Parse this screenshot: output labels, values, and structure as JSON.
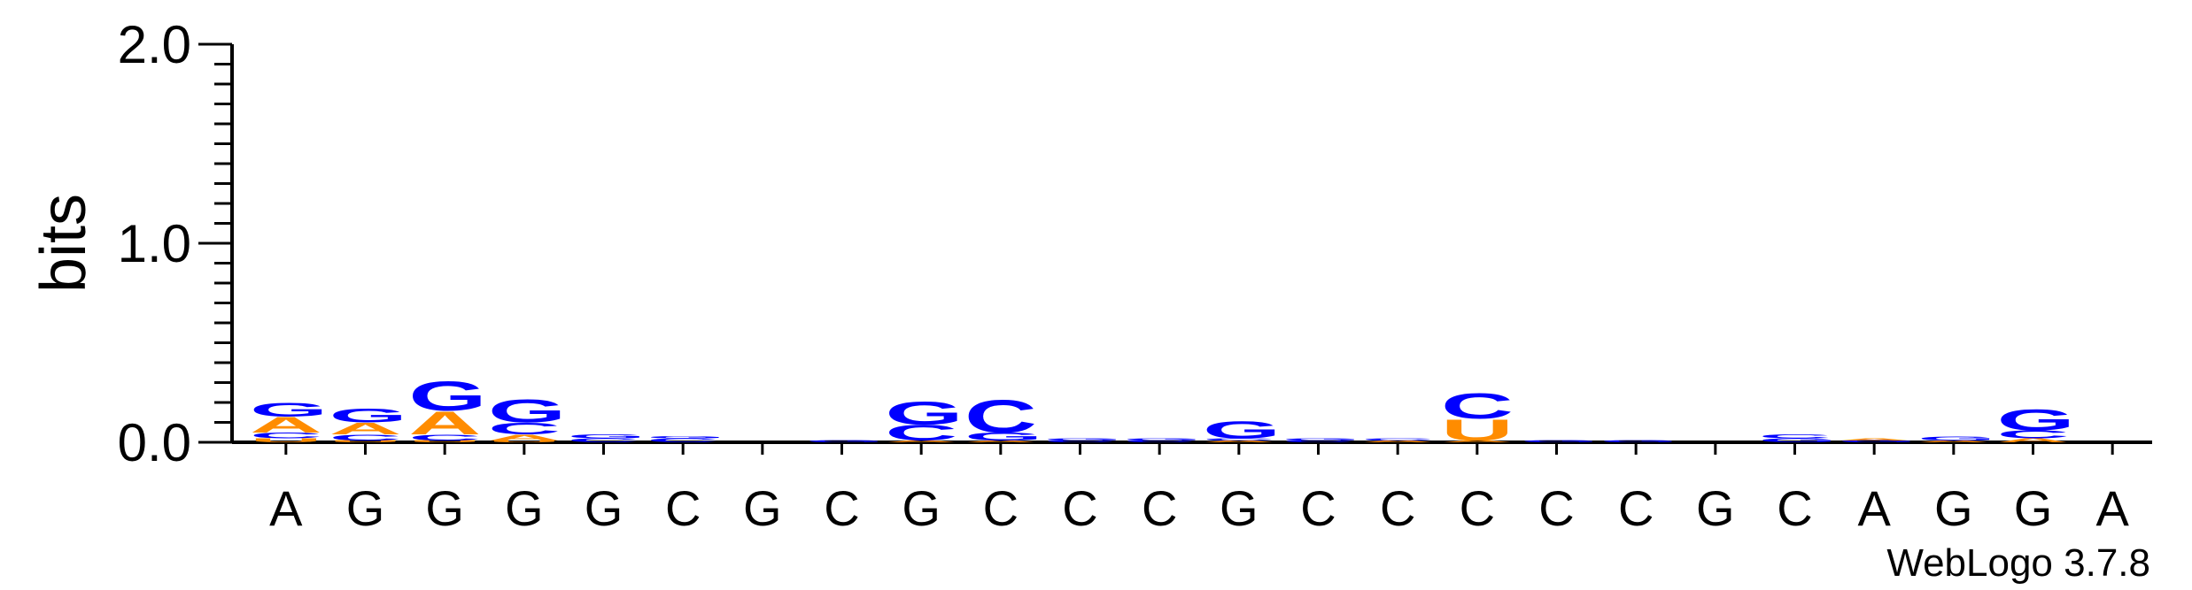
{
  "chart_data": {
    "type": "sequence-logo",
    "ylabel": "bits",
    "ylim": [
      0,
      2.0
    ],
    "yticks": [
      "0.0",
      "1.0",
      "2.0"
    ],
    "y_minor_step": 0.1,
    "positions": [
      "A",
      "G",
      "G",
      "G",
      "G",
      "C",
      "G",
      "C",
      "G",
      "C",
      "C",
      "C",
      "G",
      "C",
      "C",
      "C",
      "C",
      "C",
      "G",
      "C",
      "A",
      "G",
      "G",
      "A"
    ],
    "stacks": [
      [
        {
          "l": "U",
          "h": 0.02
        },
        {
          "l": "C",
          "h": 0.03
        },
        {
          "l": "A",
          "h": 0.08
        },
        {
          "l": "G",
          "h": 0.07
        }
      ],
      [
        {
          "l": "U",
          "h": 0.01
        },
        {
          "l": "C",
          "h": 0.03
        },
        {
          "l": "A",
          "h": 0.06
        },
        {
          "l": "G",
          "h": 0.07
        }
      ],
      [
        {
          "l": "U",
          "h": 0.01
        },
        {
          "l": "C",
          "h": 0.03
        },
        {
          "l": "A",
          "h": 0.12
        },
        {
          "l": "G",
          "h": 0.15
        }
      ],
      [
        {
          "l": "U",
          "h": 0.01
        },
        {
          "l": "A",
          "h": 0.03
        },
        {
          "l": "C",
          "h": 0.06
        },
        {
          "l": "G",
          "h": 0.12
        }
      ],
      [
        {
          "l": "C",
          "h": 0.02
        },
        {
          "l": "G",
          "h": 0.02
        }
      ],
      [
        {
          "l": "C",
          "h": 0.02
        },
        {
          "l": "G",
          "h": 0.01
        }
      ],
      [],
      [
        {
          "l": "G",
          "h": 0.01
        }
      ],
      [
        {
          "l": "A",
          "h": 0.01
        },
        {
          "l": "C",
          "h": 0.08
        },
        {
          "l": "G",
          "h": 0.12
        }
      ],
      [
        {
          "l": "A",
          "h": 0.01
        },
        {
          "l": "G",
          "h": 0.04
        },
        {
          "l": "C",
          "h": 0.17
        }
      ],
      [
        {
          "l": "C",
          "h": 0.01
        },
        {
          "l": "G",
          "h": 0.01
        }
      ],
      [
        {
          "l": "C",
          "h": 0.01
        },
        {
          "l": "G",
          "h": 0.01
        }
      ],
      [
        {
          "l": "A",
          "h": 0.01
        },
        {
          "l": "C",
          "h": 0.01
        },
        {
          "l": "G",
          "h": 0.09
        }
      ],
      [
        {
          "l": "C",
          "h": 0.01
        },
        {
          "l": "G",
          "h": 0.01
        }
      ],
      [
        {
          "l": "A",
          "h": 0.01
        },
        {
          "l": "C",
          "h": 0.01
        }
      ],
      [
        {
          "l": "A",
          "h": 0.01
        },
        {
          "l": "U",
          "h": 0.11
        },
        {
          "l": "C",
          "h": 0.13
        }
      ],
      [
        {
          "l": "G",
          "h": 0.01
        }
      ],
      [
        {
          "l": "G",
          "h": 0.01
        }
      ],
      [],
      [
        {
          "l": "G",
          "h": 0.02
        },
        {
          "l": "C",
          "h": 0.02
        }
      ],
      [
        {
          "l": "G",
          "h": 0.01
        },
        {
          "l": "A",
          "h": 0.01
        }
      ],
      [
        {
          "l": "A",
          "h": 0.01
        },
        {
          "l": "G",
          "h": 0.02
        }
      ],
      [
        {
          "l": "A",
          "h": 0.02
        },
        {
          "l": "C",
          "h": 0.04
        },
        {
          "l": "G",
          "h": 0.11
        }
      ],
      []
    ],
    "colors": {
      "A": "#ff8c00",
      "U": "#ff8c00",
      "C": "#0000ff",
      "G": "#0000ff"
    },
    "grid": false,
    "credit": "WebLogo 3.7.8"
  }
}
